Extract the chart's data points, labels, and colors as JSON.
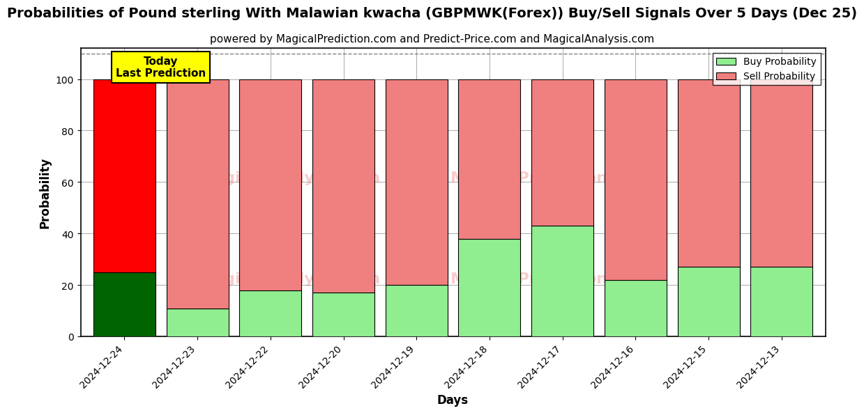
{
  "title": "Probabilities of Pound sterling With Malawian kwacha (GBPMWK(Forex)) Buy/Sell Signals Over 5 Days (Dec 25)",
  "subtitle": "powered by MagicalPrediction.com and Predict-Price.com and MagicalAnalysis.com",
  "xlabel": "Days",
  "ylabel": "Probability",
  "categories": [
    "2024-12-24",
    "2024-12-23",
    "2024-12-22",
    "2024-12-20",
    "2024-12-19",
    "2024-12-18",
    "2024-12-17",
    "2024-12-16",
    "2024-12-15",
    "2024-12-13"
  ],
  "buy_values": [
    25,
    11,
    18,
    17,
    20,
    38,
    43,
    22,
    27,
    27
  ],
  "sell_values": [
    75,
    89,
    82,
    83,
    80,
    62,
    57,
    78,
    73,
    73
  ],
  "buy_colors": [
    "#006400",
    "#90EE90",
    "#90EE90",
    "#90EE90",
    "#90EE90",
    "#90EE90",
    "#90EE90",
    "#90EE90",
    "#90EE90",
    "#90EE90"
  ],
  "sell_colors": [
    "#FF0000",
    "#F08080",
    "#F08080",
    "#F08080",
    "#F08080",
    "#F08080",
    "#F08080",
    "#F08080",
    "#F08080",
    "#F08080"
  ],
  "today_label": "Today\nLast Prediction",
  "ylim": [
    0,
    112
  ],
  "yticks": [
    0,
    20,
    40,
    60,
    80,
    100
  ],
  "dashed_line_y": 110,
  "legend_buy_color": "#90EE90",
  "legend_sell_color": "#F08080",
  "bar_edge_color": "#000000",
  "background_color": "#ffffff",
  "grid_color": "#aaaaaa",
  "today_box_color": "#FFFF00",
  "title_fontsize": 14,
  "subtitle_fontsize": 11,
  "bar_width": 0.85
}
